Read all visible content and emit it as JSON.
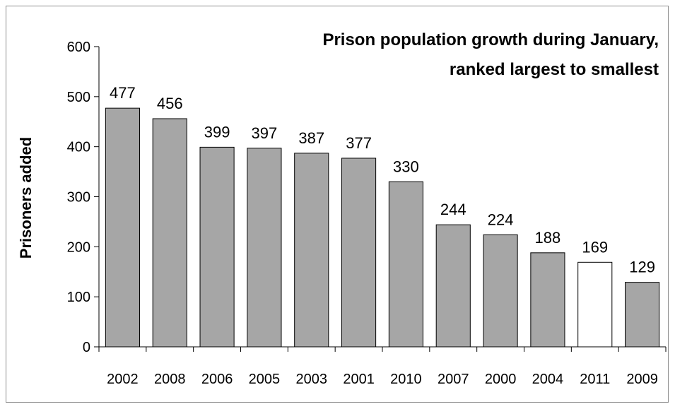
{
  "chart_data": {
    "type": "bar",
    "title_lines": [
      "Prison population growth during January,",
      "ranked largest to smallest"
    ],
    "xlabel": "",
    "ylabel": "Prisoners added",
    "categories": [
      "2002",
      "2008",
      "2006",
      "2005",
      "2003",
      "2001",
      "2010",
      "2007",
      "2000",
      "2004",
      "2011",
      "2009"
    ],
    "values": [
      477,
      456,
      399,
      397,
      387,
      377,
      330,
      244,
      224,
      188,
      169,
      129
    ],
    "highlight_category": "2011",
    "ylim": [
      0,
      600
    ],
    "yticks": [
      "0",
      "100",
      "200",
      "300",
      "400",
      "500",
      "600"
    ],
    "grid": false,
    "legend": "none",
    "colors": {
      "bar_fill": "#a6a6a6",
      "highlight_fill": "#ffffff",
      "bar_stroke": "#000000"
    }
  }
}
